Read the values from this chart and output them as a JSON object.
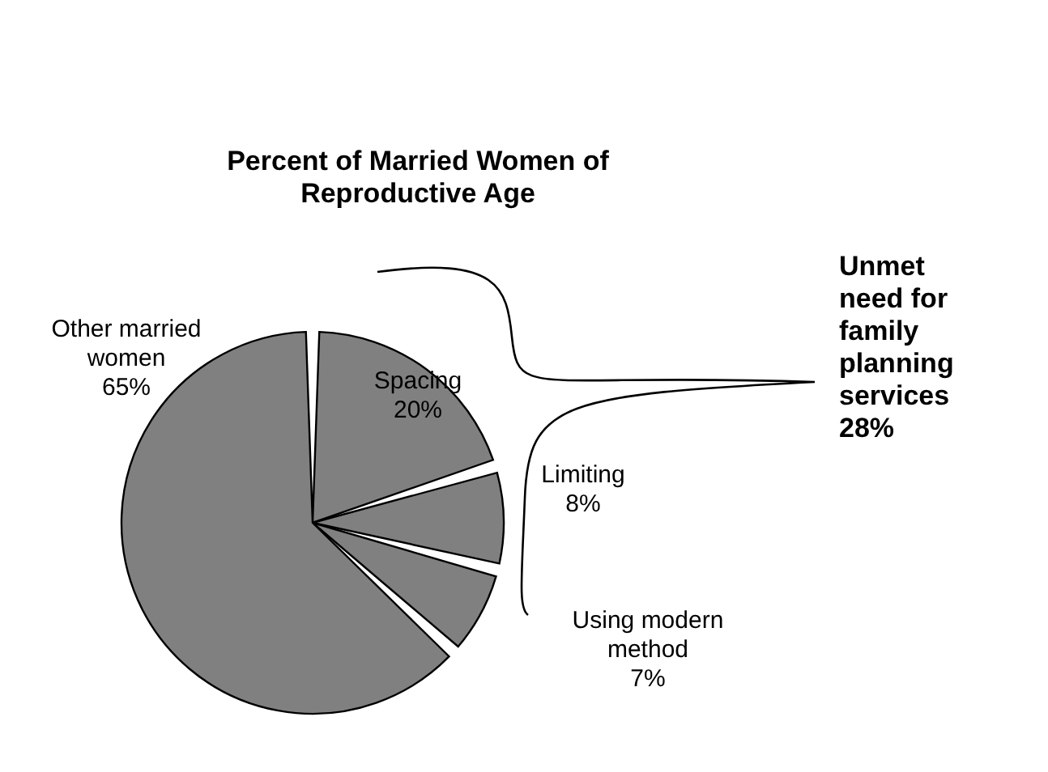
{
  "chart_data": {
    "type": "pie",
    "title": "Percent of Married Women of Reproductive Age",
    "categories": [
      "Spacing",
      "Limiting",
      "Using modern method",
      "Other married women"
    ],
    "values": [
      20,
      8,
      7,
      65
    ],
    "colors": [
      "#808080",
      "#808080",
      "#808080",
      "#808080"
    ],
    "value_labels": [
      "20%",
      "8%",
      "7%",
      "65%"
    ],
    "annotations": [
      "Unmet need for family planning services 28%"
    ],
    "legend": false
  }
}
